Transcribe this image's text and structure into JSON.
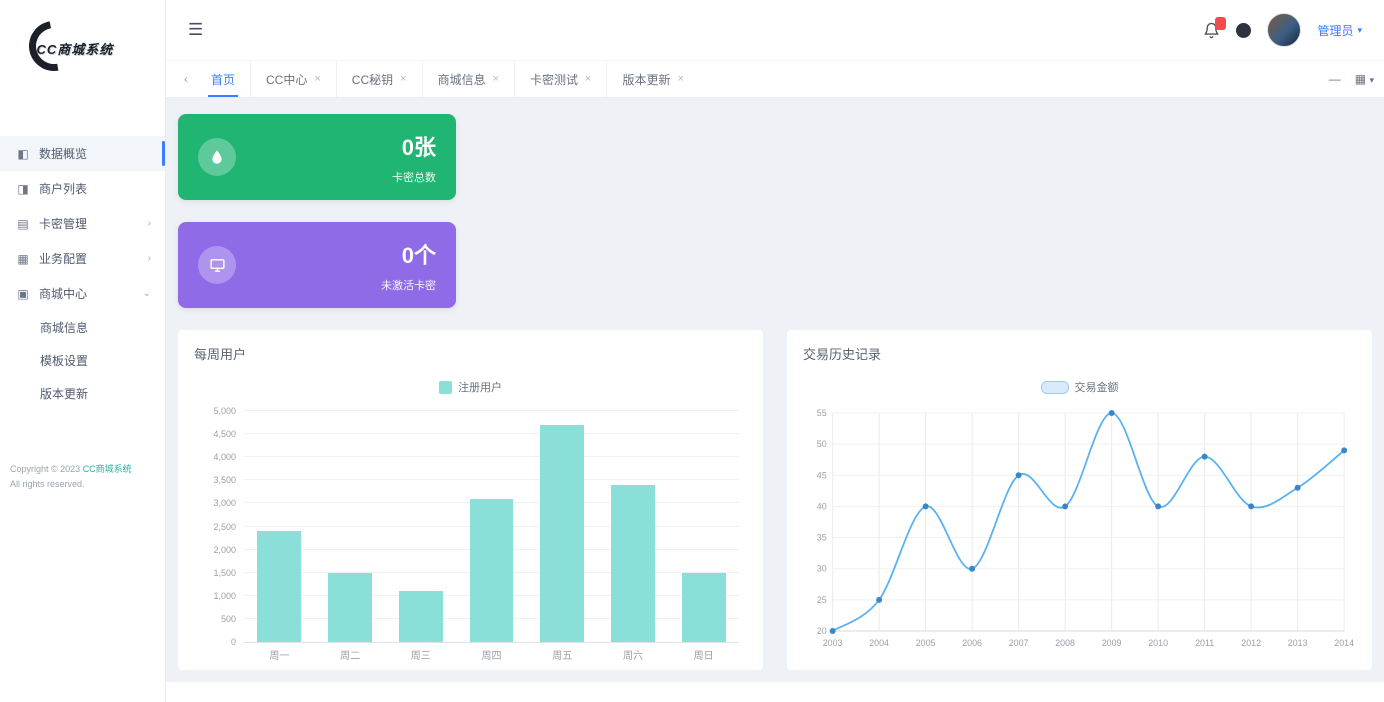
{
  "app": {
    "logo_title": "CC商城系统"
  },
  "sidebar": {
    "items": [
      {
        "label": "数据概览",
        "icon": "dashboard-icon",
        "glyph": "◧",
        "active": true,
        "chevron": null
      },
      {
        "label": "商户列表",
        "icon": "users-icon",
        "glyph": "◨",
        "active": false,
        "chevron": null
      },
      {
        "label": "卡密管理",
        "icon": "card-icon",
        "glyph": "▤",
        "active": false,
        "chevron": "›"
      },
      {
        "label": "业务配置",
        "icon": "config-icon",
        "glyph": "▦",
        "active": false,
        "chevron": "›"
      },
      {
        "label": "商城中心",
        "icon": "shop-icon",
        "glyph": "▣",
        "active": false,
        "chevron": "⌄"
      }
    ],
    "subitems": [
      {
        "label": "商城信息"
      },
      {
        "label": "模板设置"
      },
      {
        "label": "版本更新"
      }
    ],
    "copyright": {
      "prefix": "Copyright © 2023 ",
      "brand": "CC商城系统",
      "line2": "All rights reserved."
    }
  },
  "header": {
    "username": "管理员",
    "caret": "▾",
    "hamburger": "☰",
    "badge_color": "#f14b4b"
  },
  "tabbar": {
    "scroll_left": "‹",
    "tabs": [
      {
        "label": "首页",
        "active": true,
        "closable": false
      },
      {
        "label": "CC中心",
        "active": false,
        "closable": true
      },
      {
        "label": "CC秘钥",
        "active": false,
        "closable": true
      },
      {
        "label": "商城信息",
        "active": false,
        "closable": true
      },
      {
        "label": "卡密测试",
        "active": false,
        "closable": true
      },
      {
        "label": "版本更新",
        "active": false,
        "closable": true
      }
    ],
    "controls": {
      "minimize": "—",
      "layout": "▦",
      "caret": "▾"
    }
  },
  "cards": [
    {
      "value": "0张",
      "label": "卡密总数",
      "color": "#21b573",
      "icon": "droplet-icon"
    },
    {
      "value": "0个",
      "label": "未激活卡密",
      "color": "#8f6be8",
      "icon": "monitor-icon"
    }
  ],
  "chart_data": [
    {
      "type": "bar",
      "title": "每周用户",
      "legend": "注册用户",
      "categories": [
        "周一",
        "周二",
        "周三",
        "周四",
        "周五",
        "周六",
        "周日"
      ],
      "values": [
        2400,
        1500,
        1100,
        3100,
        4700,
        3400,
        1500
      ],
      "xlabel": "",
      "ylabel": "",
      "ylim": [
        0,
        5000
      ],
      "ytick_step": 500,
      "bar_color": "#8ae0d8",
      "grid": true,
      "legend_position": "top"
    },
    {
      "type": "line",
      "title": "交易历史记录",
      "legend": "交易金额",
      "x": [
        2003,
        2004,
        2005,
        2006,
        2007,
        2008,
        2009,
        2010,
        2011,
        2012,
        2013,
        2014
      ],
      "values": [
        20,
        25,
        40,
        30,
        45,
        40,
        55,
        40,
        48,
        40,
        43,
        49
      ],
      "xlabel": "",
      "ylabel": "",
      "ylim": [
        20,
        55
      ],
      "ytick_step": 5,
      "line_color": "#5ab1ef",
      "point_color": "#3a87c8",
      "grid": true,
      "legend_position": "top"
    }
  ]
}
